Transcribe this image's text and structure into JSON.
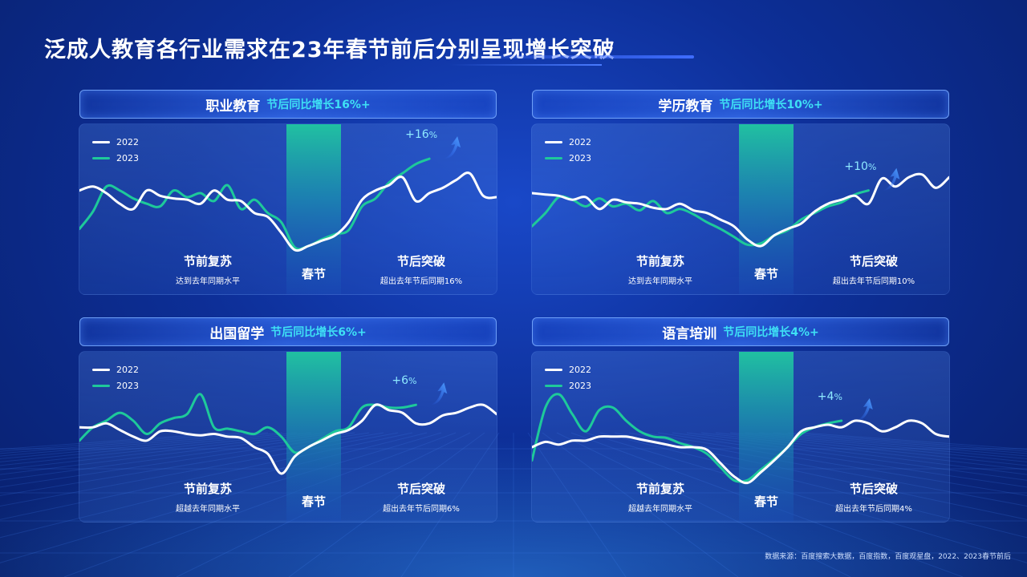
{
  "page": {
    "title": "泛成人教育各行业需求在23年春节前后分别呈现增长突破",
    "footer": "数据来源：百度搜索大数据，百度指数，百度观星盘，2022、2023春节前后"
  },
  "colors": {
    "line_2022": "#ffffff",
    "line_2023": "#1ec99a",
    "accent_text": "#3ee0f5"
  },
  "legend": {
    "label_2022": "2022",
    "label_2023": "2023"
  },
  "festival_label": "春节",
  "chart_data": [
    {
      "type": "line",
      "name": "职业教育",
      "growth_text": "节后同比增长16%+",
      "growth_tag": "+16",
      "growth_unit": "%",
      "before": {
        "title": "节前复苏",
        "sub": "达到去年同期水平"
      },
      "after": {
        "title": "节后突破",
        "sub": "超出去年节后同期16%"
      },
      "ylim": [
        0,
        100
      ],
      "series": [
        {
          "name": "2022",
          "values": [
            62,
            65,
            60,
            52,
            48,
            62,
            58,
            56,
            55,
            52,
            62,
            55,
            54,
            45,
            42,
            30,
            17,
            20,
            24,
            28,
            38,
            55,
            62,
            66,
            72,
            54,
            60,
            64,
            70,
            75,
            58,
            57
          ]
        },
        {
          "name": "2023",
          "values": [
            33,
            46,
            65,
            62,
            56,
            52,
            50,
            62,
            57,
            60,
            54,
            66,
            48,
            55,
            45,
            38,
            19,
            20,
            25,
            29,
            32,
            50,
            56,
            68,
            75,
            82,
            86
          ]
        }
      ]
    },
    {
      "type": "line",
      "name": "学历教育",
      "growth_text": "节后同比增长10%+",
      "growth_tag": "+10",
      "growth_unit": "%",
      "before": {
        "title": "节前复苏",
        "sub": "达到去年同期水平"
      },
      "after": {
        "title": "节后突破",
        "sub": "超出去年节后同期10%"
      },
      "ylim": [
        0,
        100
      ],
      "series": [
        {
          "name": "2022",
          "values": [
            60,
            59,
            58,
            55,
            57,
            48,
            55,
            53,
            52,
            49,
            48,
            52,
            47,
            45,
            40,
            35,
            25,
            20,
            28,
            33,
            37,
            46,
            52,
            55,
            58,
            52,
            71,
            65,
            72,
            74,
            64,
            72
          ]
        },
        {
          "name": "2023",
          "values": [
            35,
            45,
            57,
            55,
            50,
            56,
            50,
            52,
            47,
            54,
            45,
            48,
            44,
            38,
            33,
            27,
            21,
            22,
            28,
            32,
            40,
            45,
            50,
            53,
            59,
            62
          ]
        }
      ]
    },
    {
      "type": "line",
      "name": "出国留学",
      "growth_text": "节后同比增长6%+",
      "growth_tag": "+6",
      "growth_unit": "%",
      "before": {
        "title": "节前复苏",
        "sub": "超越去年同期水平"
      },
      "after": {
        "title": "节后突破",
        "sub": "超出去年节后同期6%"
      },
      "ylim": [
        0,
        100
      ],
      "series": [
        {
          "name": "2022",
          "values": [
            55,
            55,
            58,
            53,
            48,
            45,
            52,
            52,
            50,
            49,
            50,
            48,
            47,
            40,
            35,
            20,
            33,
            40,
            45,
            50,
            53,
            60,
            72,
            68,
            66,
            58,
            58,
            64,
            66,
            70,
            72,
            65
          ]
        },
        {
          "name": "2023",
          "values": [
            45,
            55,
            60,
            66,
            60,
            50,
            58,
            62,
            65,
            80,
            55,
            54,
            52,
            50,
            55,
            48,
            36,
            40,
            46,
            52,
            55,
            70,
            72,
            70,
            70,
            72
          ]
        }
      ]
    },
    {
      "type": "line",
      "name": "语言培训",
      "growth_text": "节后同比增长4%+",
      "growth_tag": "+4",
      "growth_unit": "%",
      "before": {
        "title": "节前复苏",
        "sub": "超越去年同期水平"
      },
      "after": {
        "title": "节后突破",
        "sub": "超出去年节后同期4%"
      },
      "ylim": [
        0,
        100
      ],
      "series": [
        {
          "name": "2022",
          "values": [
            40,
            44,
            42,
            45,
            45,
            48,
            48,
            48,
            46,
            44,
            42,
            40,
            40,
            38,
            28,
            18,
            13,
            21,
            30,
            40,
            52,
            55,
            57,
            55,
            60,
            58,
            52,
            55,
            60,
            58,
            50,
            48
          ]
        },
        {
          "name": "2023",
          "values": [
            30,
            70,
            80,
            65,
            52,
            68,
            70,
            60,
            52,
            48,
            47,
            43,
            40,
            35,
            25,
            15,
            15,
            23,
            31,
            40,
            50,
            55,
            58,
            60
          ]
        }
      ]
    }
  ]
}
